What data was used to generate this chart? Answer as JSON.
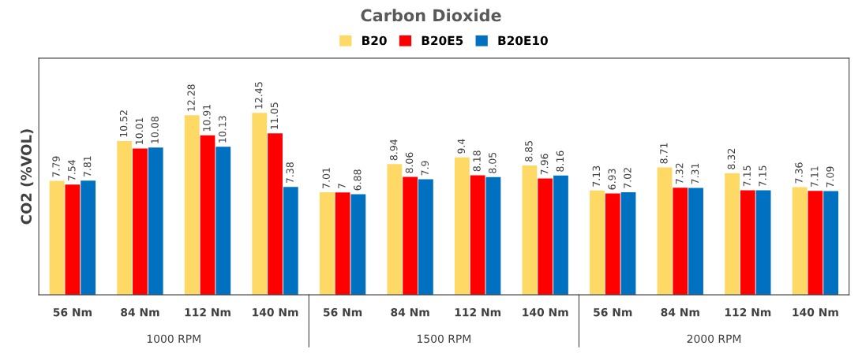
{
  "chart_data": {
    "type": "bar",
    "title": "Carbon Dioxide",
    "ylabel": "CO2 (%VOL)",
    "categories": [
      "56 Nm",
      "84 Nm",
      "112 Nm",
      "140 Nm",
      "56 Nm",
      "84 Nm",
      "112 Nm",
      "140 Nm",
      "56 Nm",
      "84 Nm",
      "112 Nm",
      "140 Nm"
    ],
    "series": [
      {
        "name": "B20",
        "color": "#ffd966",
        "values": [
          7.79,
          10.52,
          12.28,
          12.45,
          7.01,
          8.94,
          9.4,
          8.85,
          7.13,
          8.71,
          8.32,
          7.36
        ]
      },
      {
        "name": "B20E5",
        "color": "#ff0000",
        "values": [
          7.54,
          10.01,
          10.91,
          11.05,
          7,
          8.06,
          8.18,
          7.96,
          6.93,
          7.32,
          7.15,
          7.11
        ]
      },
      {
        "name": "B20E10",
        "color": "#0070c0",
        "values": [
          7.81,
          10.08,
          10.13,
          7.38,
          6.88,
          7.9,
          8.05,
          8.16,
          7.02,
          7.31,
          7.15,
          7.09
        ]
      }
    ],
    "annotations": [
      "1000 RPM",
      "1500 RPM",
      "2000 RPM"
    ],
    "data_labels": true,
    "legend": "top",
    "grid": false
  }
}
